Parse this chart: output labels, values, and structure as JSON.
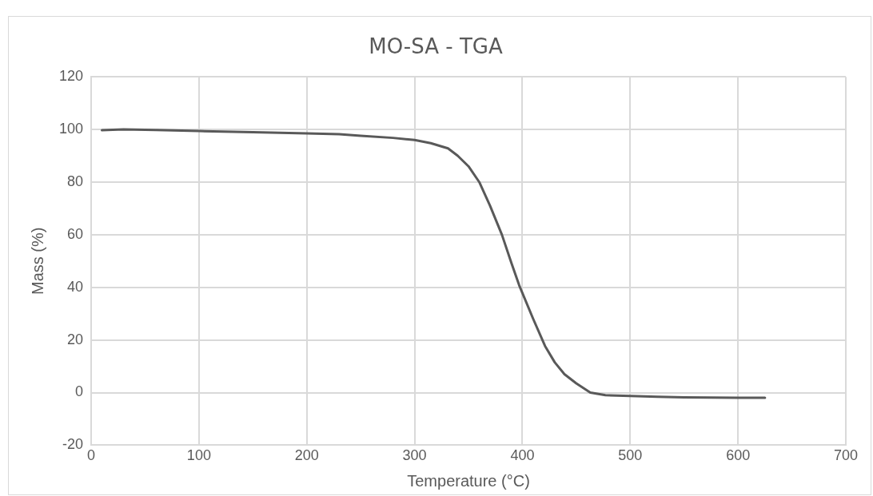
{
  "chart_data": {
    "type": "line",
    "title": "MO-SA - TGA",
    "xlabel": "Temperature (°C)",
    "ylabel": "Mass (%)",
    "series": [
      {
        "color": "#595959",
        "x": [
          10,
          30,
          60,
          100,
          150,
          200,
          230,
          250,
          280,
          300,
          315,
          331,
          340,
          350,
          360,
          370,
          381,
          390,
          397,
          410,
          421,
          430,
          439,
          450,
          463,
          477,
          500,
          525,
          550,
          575,
          600,
          625
        ],
        "values": [
          99.7,
          100,
          99.8,
          99.4,
          99,
          98.5,
          98.2,
          97.6,
          96.8,
          96,
          94.8,
          92.8,
          90,
          86,
          80,
          71,
          60,
          49,
          40.8,
          28,
          17.7,
          11.5,
          7,
          3.5,
          0,
          -1,
          -1.3,
          -1.6,
          -1.8,
          -1.9,
          -2,
          -2
        ]
      }
    ],
    "xlim": [
      0,
      700
    ],
    "xticks": [
      0,
      100,
      200,
      300,
      400,
      500,
      600,
      700
    ],
    "ylim": [
      -20,
      120
    ],
    "yticks": [
      -20,
      0,
      20,
      40,
      60,
      80,
      100,
      120
    ],
    "grid": true,
    "marker": "none",
    "line_style": "solid"
  }
}
